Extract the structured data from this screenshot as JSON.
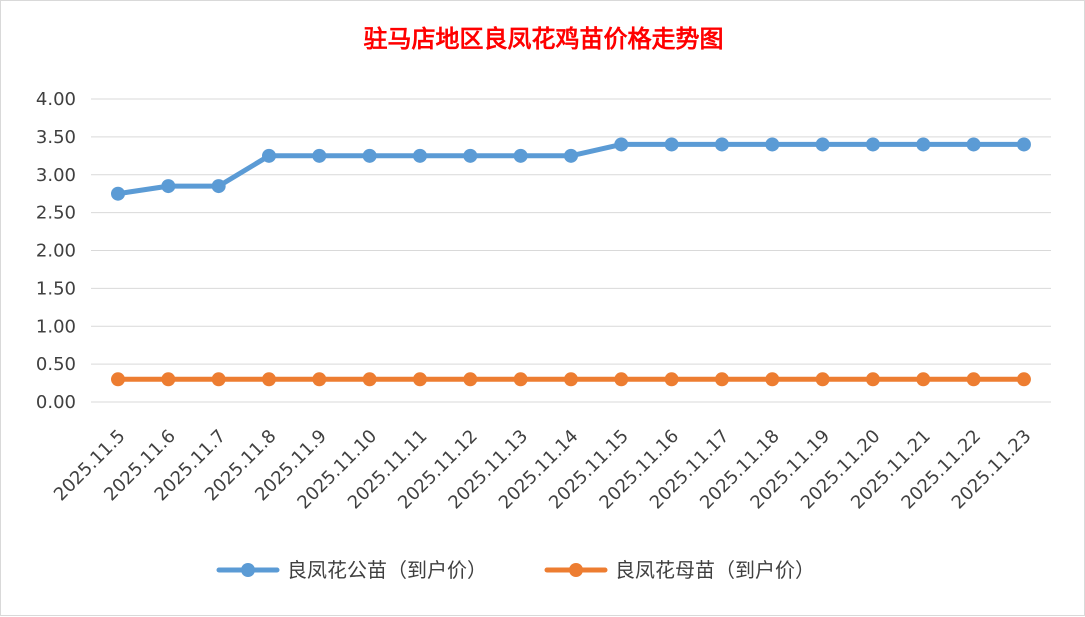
{
  "chart_data": {
    "type": "line",
    "title": "驻马店地区良凤花鸡苗价格走势图",
    "categories": [
      "2025.11.5",
      "2025.11.6",
      "2025.11.7",
      "2025.11.8",
      "2025.11.9",
      "2025.11.10",
      "2025.11.11",
      "2025.11.12",
      "2025.11.13",
      "2025.11.14",
      "2025.11.15",
      "2025.11.16",
      "2025.11.17",
      "2025.11.18",
      "2025.11.19",
      "2025.11.20",
      "2025.11.21",
      "2025.11.22",
      "2025.11.23"
    ],
    "series": [
      {
        "name": "良凤花公苗（到户价）",
        "color": "#5b9bd5",
        "values": [
          2.75,
          2.85,
          2.85,
          3.25,
          3.25,
          3.25,
          3.25,
          3.25,
          3.25,
          3.25,
          3.4,
          3.4,
          3.4,
          3.4,
          3.4,
          3.4,
          3.4,
          3.4,
          3.4
        ]
      },
      {
        "name": "良凤花母苗（到户价）",
        "color": "#ed7d31",
        "values": [
          0.3,
          0.3,
          0.3,
          0.3,
          0.3,
          0.3,
          0.3,
          0.3,
          0.3,
          0.3,
          0.3,
          0.3,
          0.3,
          0.3,
          0.3,
          0.3,
          0.3,
          0.3,
          0.3
        ]
      }
    ],
    "ylim": [
      0,
      4
    ],
    "yticks": [
      "0.00",
      "0.50",
      "1.00",
      "1.50",
      "2.00",
      "2.50",
      "3.00",
      "3.50",
      "4.00"
    ],
    "grid": true,
    "legend": "bottom",
    "title_color": "#ff0000"
  }
}
